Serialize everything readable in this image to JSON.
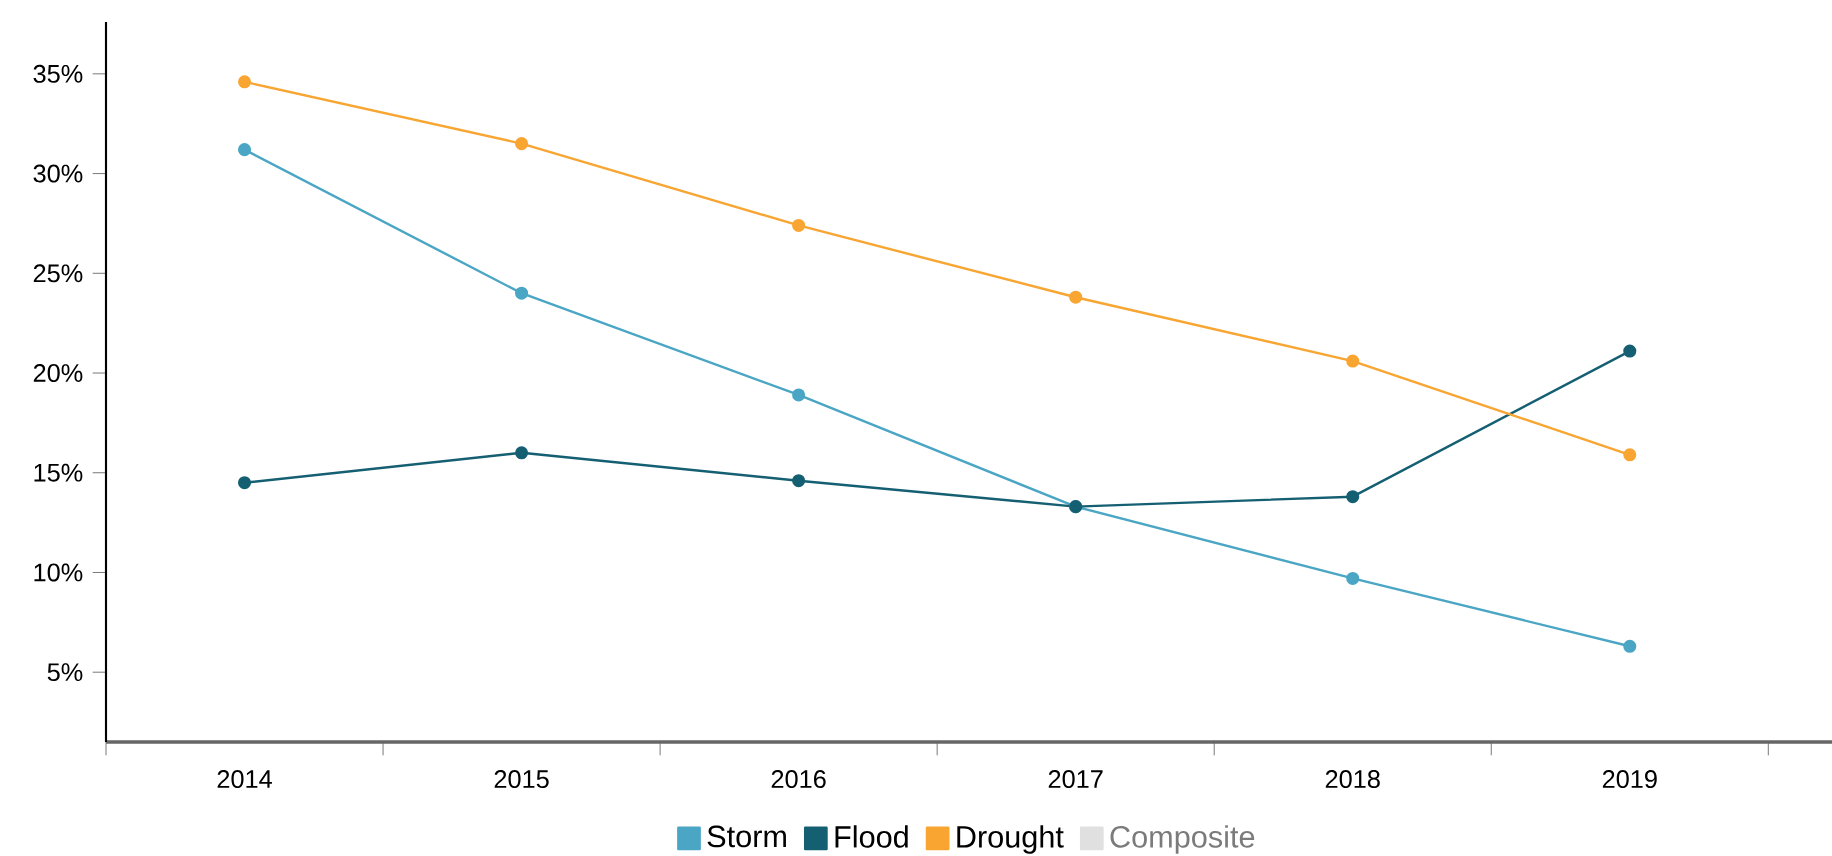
{
  "chart_data": {
    "type": "line",
    "x": [
      2014,
      2015,
      2016,
      2017,
      2018,
      2019
    ],
    "series": [
      {
        "name": "Storm",
        "color": "#4aa6c4",
        "values": [
          31.2,
          24.0,
          18.9,
          13.3,
          9.7,
          6.3
        ]
      },
      {
        "name": "Flood",
        "color": "#155f72",
        "values": [
          14.5,
          16.0,
          14.6,
          13.3,
          13.8,
          21.1
        ]
      },
      {
        "name": "Drought",
        "color": "#f8a532",
        "values": [
          34.6,
          31.5,
          27.4,
          23.8,
          20.6,
          15.9
        ]
      },
      {
        "name": "Composite",
        "color": "#e0e0e0",
        "values": [
          null,
          null,
          null,
          null,
          null,
          null
        ]
      }
    ],
    "xlim": [
      2013.5,
      2019.73
    ],
    "xticks": [
      {
        "value": 2013.5,
        "label": null
      },
      {
        "value": 2014.5,
        "label": null
      },
      {
        "value": 2015.5,
        "label": null
      },
      {
        "value": 2016.5,
        "label": null
      },
      {
        "value": 2017.5,
        "label": null
      },
      {
        "value": 2018.5,
        "label": null
      },
      {
        "value": 2019.5,
        "label": null
      },
      2014,
      2015,
      2016,
      2017,
      2018,
      2019
    ],
    "ylim": [
      1.5,
      37.6
    ],
    "yticks": [
      {
        "value": 5,
        "label": "5%"
      },
      {
        "value": 10,
        "label": "10%"
      },
      {
        "value": 15,
        "label": "15%"
      },
      {
        "value": 20,
        "label": "20%"
      },
      {
        "value": 25,
        "label": "25%"
      },
      {
        "value": 30,
        "label": "30%"
      },
      {
        "value": 35,
        "label": "35%"
      }
    ],
    "marker": "circle",
    "grid": false,
    "legend": "bottom"
  }
}
